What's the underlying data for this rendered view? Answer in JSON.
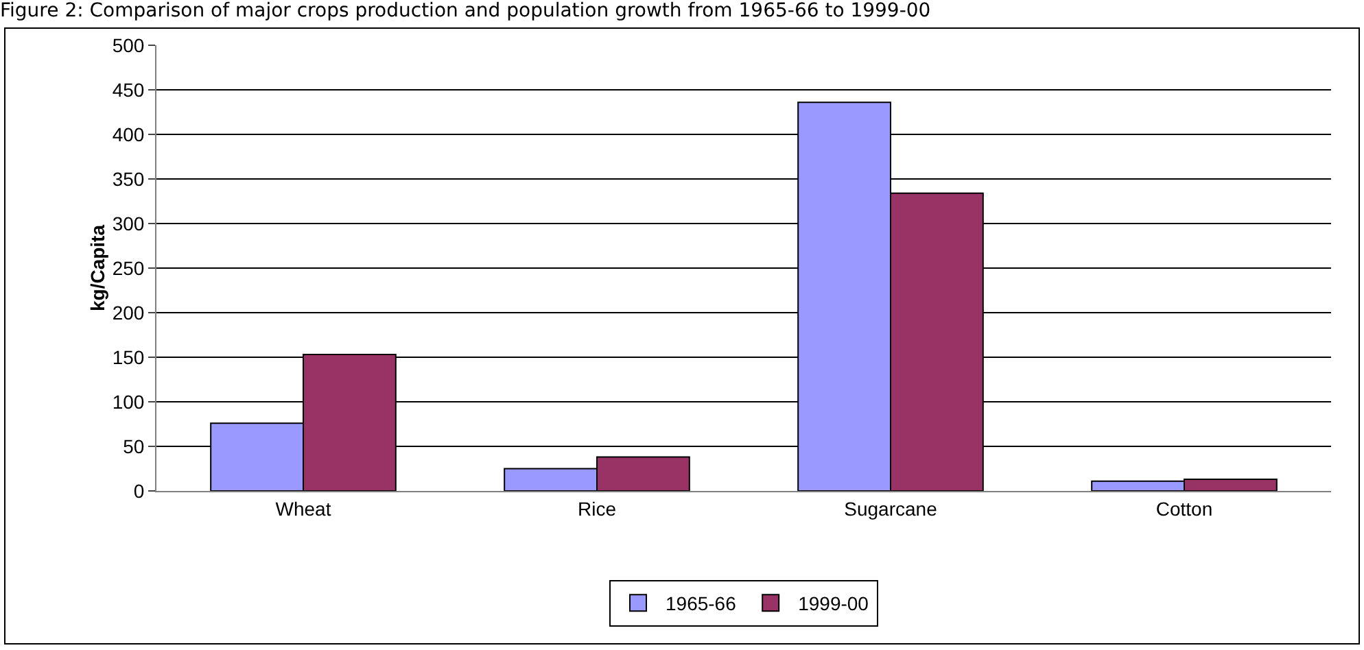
{
  "chart_data": {
    "type": "bar",
    "title": "Figure 2: Comparison of major crops production and population growth from 1965-66 to 1999-00",
    "ylabel": "kg/Capita",
    "categories": [
      "Wheat",
      "Rice",
      "Sugarcane",
      "Cotton"
    ],
    "series": [
      {
        "name": "1965-66",
        "color": "#9999ff",
        "values": [
          76,
          25,
          436,
          11
        ]
      },
      {
        "name": "1999-00",
        "color": "#993366",
        "values": [
          153,
          38,
          334,
          13
        ]
      }
    ],
    "ylim": [
      0,
      500
    ],
    "yticks": [
      0,
      50,
      100,
      150,
      200,
      250,
      300,
      350,
      400,
      450,
      500
    ],
    "grid": "y",
    "legend": "bottom"
  }
}
